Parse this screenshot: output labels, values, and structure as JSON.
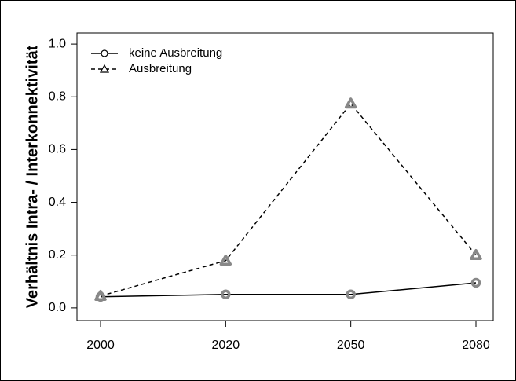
{
  "chart_data": {
    "type": "line",
    "ylabel": "Verhältnis Intra- / Interkonnektivität",
    "categories": [
      "2000",
      "2020",
      "2050",
      "2080"
    ],
    "series": [
      {
        "name": "keine Ausbreitung",
        "color": "#000000",
        "marker_color": "#888888",
        "marker": "circle",
        "dash": false,
        "values": [
          0.042,
          0.051,
          0.051,
          0.095
        ]
      },
      {
        "name": "Ausbreitung",
        "color": "#000000",
        "marker_color": "#888888",
        "marker": "triangle",
        "dash": true,
        "values": [
          0.045,
          0.179,
          0.774,
          0.2
        ]
      }
    ],
    "ylim": [
      -0.048,
      1.042
    ],
    "yticks": [
      {
        "value": 0,
        "label": "0.0"
      },
      0.2,
      0.4,
      0.6,
      0.8,
      {
        "value": 1,
        "label": "1.0"
      }
    ],
    "legend": "top-left"
  }
}
